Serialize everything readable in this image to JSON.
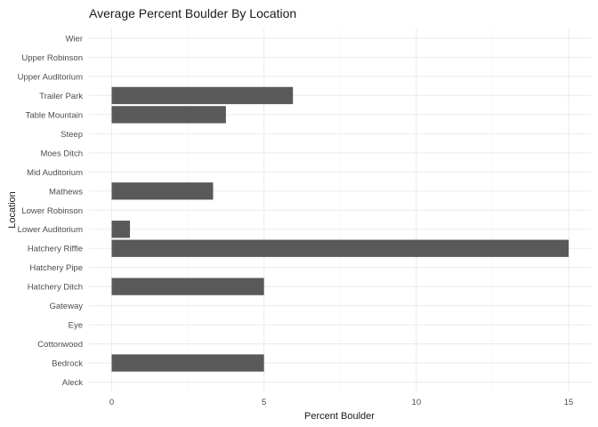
{
  "chart_data": {
    "type": "bar",
    "orientation": "horizontal",
    "title": "Average Percent Boulder By Location",
    "xlabel": "Percent Boulder",
    "ylabel": "Location",
    "xlim": [
      0,
      15
    ],
    "x_ticks": [
      0,
      5,
      10,
      15
    ],
    "grid": true,
    "bar_color": "#595959",
    "categories": [
      "Aleck",
      "Bedrock",
      "Cottonwood",
      "Eye",
      "Gateway",
      "Hatchery Ditch",
      "Hatchery Pipe",
      "Hatchery Riffle",
      "Lower Auditorium",
      "Lower Robinson",
      "Mathews",
      "Mid Auditorium",
      "Moes Ditch",
      "Steep",
      "Table Mountain",
      "Trailer Park",
      "Upper Auditorium",
      "Upper Robinson",
      "Wier"
    ],
    "values": [
      0,
      5,
      0,
      0,
      0,
      5,
      0,
      15,
      0.6,
      0,
      3.33,
      0,
      0,
      0,
      3.75,
      5.95,
      0,
      0,
      0
    ]
  }
}
